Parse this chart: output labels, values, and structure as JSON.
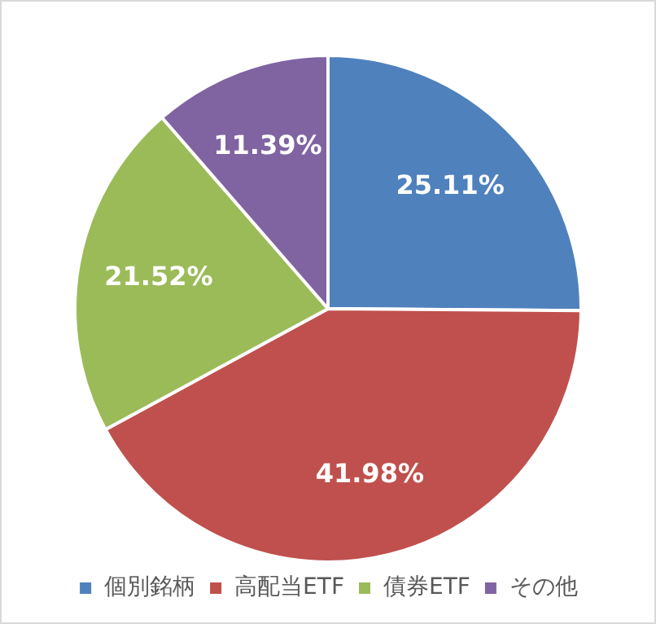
{
  "chart_data": {
    "type": "pie",
    "categories": [
      "個別銘柄",
      "高配当ETF",
      "債券ETF",
      "その他"
    ],
    "values": [
      25.11,
      41.98,
      21.52,
      11.39
    ],
    "colors": [
      "#4f81bd",
      "#c0504d",
      "#9bbb59",
      "#8064a2"
    ],
    "value_labels": [
      "25.11%",
      "41.98%",
      "21.52%",
      "11.39%"
    ],
    "legend": "bottom"
  }
}
